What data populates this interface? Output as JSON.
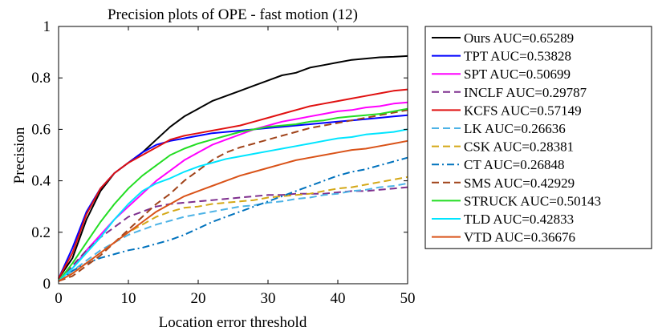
{
  "chart_data": {
    "type": "line",
    "title": "Precision plots of OPE - fast motion (12)",
    "xlabel": "Location error threshold",
    "ylabel": "Precision",
    "xlim": [
      0,
      50
    ],
    "ylim": [
      0,
      1
    ],
    "xticks": [
      0,
      10,
      20,
      30,
      40,
      50
    ],
    "yticks": [
      0,
      0.2,
      0.4,
      0.6,
      0.8,
      1
    ],
    "ytick_labels": [
      "0",
      "0.2",
      "0.4",
      "0.6",
      "0.8",
      "1"
    ],
    "grid": false,
    "legend_position": "outside-right",
    "series": [
      {
        "name": "Ours AUC=0.65289",
        "color": "#000000",
        "dash": "solid",
        "x": [
          0,
          2,
          4,
          6,
          8,
          10,
          12,
          14,
          16,
          18,
          20,
          22,
          24,
          26,
          28,
          30,
          32,
          34,
          36,
          38,
          40,
          42,
          44,
          46,
          48,
          50
        ],
        "y": [
          0.02,
          0.1,
          0.25,
          0.36,
          0.43,
          0.47,
          0.51,
          0.56,
          0.61,
          0.65,
          0.68,
          0.71,
          0.73,
          0.75,
          0.77,
          0.79,
          0.81,
          0.82,
          0.84,
          0.85,
          0.86,
          0.87,
          0.875,
          0.88,
          0.882,
          0.885
        ]
      },
      {
        "name": "TPT AUC=0.53828",
        "color": "#0000ff",
        "dash": "solid",
        "x": [
          0,
          2,
          4,
          6,
          8,
          10,
          12,
          14,
          16,
          18,
          20,
          22,
          24,
          26,
          28,
          30,
          32,
          34,
          36,
          38,
          40,
          42,
          44,
          46,
          48,
          50
        ],
        "y": [
          0.02,
          0.14,
          0.28,
          0.37,
          0.43,
          0.47,
          0.51,
          0.54,
          0.555,
          0.565,
          0.575,
          0.585,
          0.59,
          0.595,
          0.6,
          0.605,
          0.61,
          0.615,
          0.62,
          0.625,
          0.63,
          0.635,
          0.64,
          0.645,
          0.65,
          0.655
        ]
      },
      {
        "name": "SPT AUC=0.50699",
        "color": "#ff00ff",
        "dash": "solid",
        "x": [
          0,
          2,
          4,
          6,
          8,
          10,
          12,
          14,
          16,
          18,
          20,
          22,
          24,
          26,
          28,
          30,
          32,
          34,
          36,
          38,
          40,
          42,
          44,
          46,
          48,
          50
        ],
        "y": [
          0.01,
          0.06,
          0.13,
          0.19,
          0.25,
          0.3,
          0.35,
          0.4,
          0.44,
          0.48,
          0.51,
          0.54,
          0.56,
          0.58,
          0.6,
          0.615,
          0.63,
          0.64,
          0.65,
          0.66,
          0.67,
          0.675,
          0.685,
          0.69,
          0.7,
          0.705
        ]
      },
      {
        "name": "INCLF AUC=0.29787",
        "color": "#7e2f8e",
        "dash": "dashed",
        "x": [
          0,
          2,
          4,
          6,
          8,
          10,
          12,
          14,
          16,
          18,
          20,
          22,
          24,
          26,
          28,
          30,
          32,
          34,
          36,
          38,
          40,
          42,
          44,
          46,
          48,
          50
        ],
        "y": [
          0.01,
          0.07,
          0.13,
          0.18,
          0.22,
          0.26,
          0.28,
          0.3,
          0.31,
          0.315,
          0.32,
          0.325,
          0.33,
          0.335,
          0.34,
          0.345,
          0.345,
          0.35,
          0.35,
          0.35,
          0.355,
          0.36,
          0.36,
          0.365,
          0.37,
          0.375
        ]
      },
      {
        "name": "KCFS AUC=0.57149",
        "color": "#e01010",
        "dash": "solid",
        "x": [
          0,
          2,
          4,
          6,
          8,
          10,
          12,
          14,
          16,
          18,
          20,
          22,
          24,
          26,
          28,
          30,
          32,
          34,
          36,
          38,
          40,
          42,
          44,
          46,
          48,
          50
        ],
        "y": [
          0.02,
          0.12,
          0.27,
          0.37,
          0.43,
          0.47,
          0.5,
          0.53,
          0.56,
          0.575,
          0.585,
          0.595,
          0.605,
          0.615,
          0.63,
          0.645,
          0.66,
          0.675,
          0.69,
          0.7,
          0.71,
          0.72,
          0.73,
          0.74,
          0.75,
          0.755
        ]
      },
      {
        "name": "LK AUC=0.26636",
        "color": "#4db3e6",
        "dash": "dashed",
        "x": [
          0,
          2,
          4,
          6,
          8,
          10,
          12,
          14,
          16,
          18,
          20,
          22,
          24,
          26,
          28,
          30,
          32,
          34,
          36,
          38,
          40,
          42,
          44,
          46,
          48,
          50
        ],
        "y": [
          0.01,
          0.05,
          0.09,
          0.13,
          0.16,
          0.19,
          0.21,
          0.23,
          0.245,
          0.26,
          0.27,
          0.28,
          0.29,
          0.3,
          0.305,
          0.315,
          0.32,
          0.33,
          0.335,
          0.345,
          0.35,
          0.36,
          0.365,
          0.375,
          0.38,
          0.39
        ]
      },
      {
        "name": "CSK AUC=0.28381",
        "color": "#d4a817",
        "dash": "dashed",
        "x": [
          0,
          2,
          4,
          6,
          8,
          10,
          12,
          14,
          16,
          18,
          20,
          22,
          24,
          26,
          28,
          30,
          32,
          34,
          36,
          38,
          40,
          42,
          44,
          46,
          48,
          50
        ],
        "y": [
          0.01,
          0.04,
          0.08,
          0.12,
          0.16,
          0.2,
          0.23,
          0.26,
          0.28,
          0.295,
          0.3,
          0.31,
          0.315,
          0.32,
          0.325,
          0.335,
          0.34,
          0.345,
          0.35,
          0.36,
          0.37,
          0.375,
          0.385,
          0.395,
          0.405,
          0.415
        ]
      },
      {
        "name": "CT AUC=0.26848",
        "color": "#0072bd",
        "dash": "dashdot",
        "x": [
          0,
          2,
          4,
          6,
          8,
          10,
          12,
          14,
          16,
          18,
          20,
          22,
          24,
          26,
          28,
          30,
          32,
          34,
          36,
          38,
          40,
          42,
          44,
          46,
          48,
          50
        ],
        "y": [
          0.01,
          0.05,
          0.08,
          0.1,
          0.115,
          0.13,
          0.14,
          0.155,
          0.17,
          0.19,
          0.215,
          0.24,
          0.26,
          0.28,
          0.3,
          0.32,
          0.34,
          0.36,
          0.38,
          0.4,
          0.42,
          0.435,
          0.445,
          0.46,
          0.475,
          0.49
        ]
      },
      {
        "name": "SMS AUC=0.42929",
        "color": "#a0431a",
        "dash": "dashed",
        "x": [
          0,
          2,
          4,
          6,
          8,
          10,
          12,
          14,
          16,
          18,
          20,
          22,
          24,
          26,
          28,
          30,
          32,
          34,
          36,
          38,
          40,
          42,
          44,
          46,
          48,
          50
        ],
        "y": [
          0.01,
          0.03,
          0.07,
          0.11,
          0.16,
          0.21,
          0.26,
          0.31,
          0.35,
          0.4,
          0.44,
          0.48,
          0.51,
          0.53,
          0.545,
          0.56,
          0.575,
          0.59,
          0.605,
          0.615,
          0.625,
          0.635,
          0.645,
          0.655,
          0.665,
          0.675
        ]
      },
      {
        "name": "STRUCK AUC=0.50143",
        "color": "#22dd22",
        "dash": "solid",
        "x": [
          0,
          2,
          4,
          6,
          8,
          10,
          12,
          14,
          16,
          18,
          20,
          22,
          24,
          26,
          28,
          30,
          32,
          34,
          36,
          38,
          40,
          42,
          44,
          46,
          48,
          50
        ],
        "y": [
          0.01,
          0.08,
          0.16,
          0.24,
          0.31,
          0.37,
          0.42,
          0.46,
          0.5,
          0.525,
          0.545,
          0.56,
          0.575,
          0.59,
          0.6,
          0.61,
          0.615,
          0.62,
          0.63,
          0.635,
          0.645,
          0.65,
          0.655,
          0.66,
          0.67,
          0.68
        ]
      },
      {
        "name": "TLD AUC=0.42833",
        "color": "#00e5ff",
        "dash": "solid",
        "x": [
          0,
          2,
          4,
          6,
          8,
          10,
          12,
          14,
          16,
          18,
          20,
          22,
          24,
          26,
          28,
          30,
          32,
          34,
          36,
          38,
          40,
          42,
          44,
          46,
          48,
          50
        ],
        "y": [
          0.01,
          0.06,
          0.12,
          0.18,
          0.25,
          0.31,
          0.36,
          0.39,
          0.41,
          0.435,
          0.455,
          0.47,
          0.485,
          0.495,
          0.505,
          0.515,
          0.525,
          0.535,
          0.545,
          0.555,
          0.565,
          0.57,
          0.58,
          0.585,
          0.59,
          0.6
        ]
      },
      {
        "name": "VTD AUC=0.36676",
        "color": "#d95319",
        "dash": "solid",
        "x": [
          0,
          2,
          4,
          6,
          8,
          10,
          12,
          14,
          16,
          18,
          20,
          22,
          24,
          26,
          28,
          30,
          32,
          34,
          36,
          38,
          40,
          42,
          44,
          46,
          48,
          50
        ],
        "y": [
          0.01,
          0.04,
          0.08,
          0.12,
          0.16,
          0.2,
          0.24,
          0.28,
          0.31,
          0.34,
          0.36,
          0.38,
          0.4,
          0.42,
          0.435,
          0.45,
          0.465,
          0.48,
          0.49,
          0.5,
          0.51,
          0.52,
          0.525,
          0.535,
          0.545,
          0.555
        ]
      }
    ]
  }
}
